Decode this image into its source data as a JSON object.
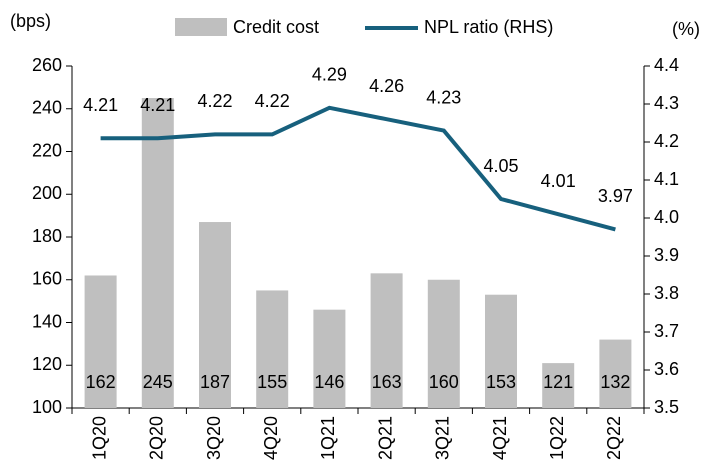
{
  "chart_data": {
    "type": "bar_line",
    "y_unit": "(bps)",
    "y2_unit": "(%)",
    "categories": [
      "1Q20",
      "2Q20",
      "3Q20",
      "4Q20",
      "1Q21",
      "2Q21",
      "3Q21",
      "4Q21",
      "1Q22",
      "2Q22"
    ],
    "series": [
      {
        "name": "Credit cost",
        "type": "bar",
        "color": "#bfbfbf",
        "values": [
          162,
          245,
          187,
          155,
          146,
          163,
          160,
          153,
          121,
          132
        ]
      },
      {
        "name": "NPL ratio (RHS)",
        "type": "line",
        "axis": "y2",
        "color": "#17607d",
        "values": [
          4.21,
          4.21,
          4.22,
          4.22,
          4.29,
          4.26,
          4.23,
          4.05,
          4.01,
          3.97
        ]
      }
    ],
    "ylim": [
      100,
      260
    ],
    "yticks": [
      100,
      120,
      140,
      160,
      180,
      200,
      220,
      240,
      260
    ],
    "y2lim": [
      3.5,
      4.4
    ],
    "y2ticks": [
      3.5,
      3.6,
      3.7,
      3.8,
      3.9,
      {
        "value": 4,
        "label": "4.0"
      },
      4.1,
      4.2,
      4.3,
      4.4
    ]
  }
}
